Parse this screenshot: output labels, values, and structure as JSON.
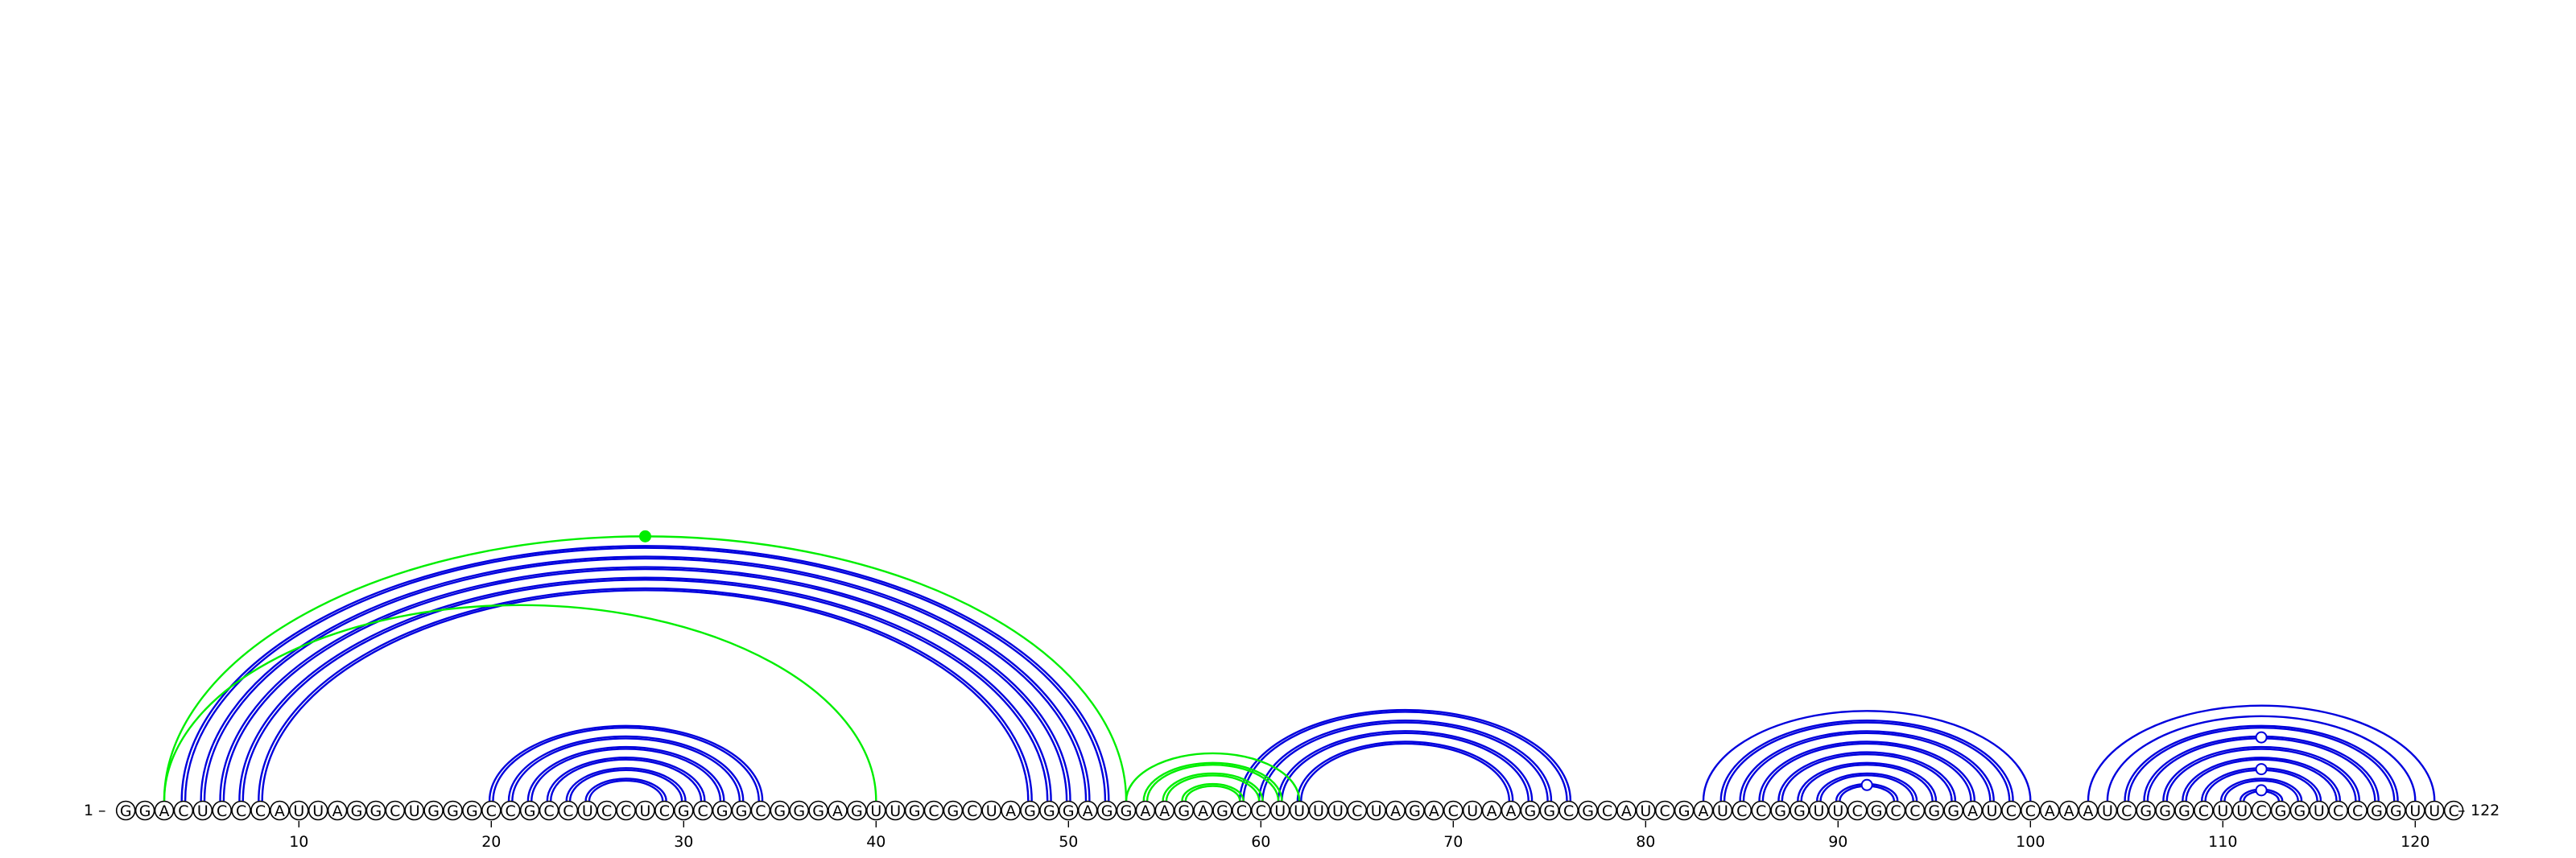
{
  "sequence": "GGACUCCCAUUAGGCUGGGCCGCCUCCUCGCGGCGGGAGUUGCGCUAGGGAGGAAGAGCCUUUUCUAGACUAAGGCGCAUCGAUCCGGUUCGCCGGAUCCAAAUCGGGCUUCGGUCCGGUUC",
  "start_label": "1",
  "end_label": "122",
  "tick_labels": [
    "10",
    "20",
    "30",
    "40",
    "50",
    "60",
    "70",
    "80",
    "90",
    "100",
    "110",
    "120"
  ],
  "colors": {
    "blue": "#0000dd",
    "green": "#00ee00"
  },
  "arcs": {
    "blue_pairs": [
      [
        4,
        52
      ],
      [
        5,
        51
      ],
      [
        6,
        50
      ],
      [
        7,
        49
      ],
      [
        8,
        48
      ],
      [
        20,
        34
      ],
      [
        21,
        33
      ],
      [
        22,
        32
      ],
      [
        23,
        31
      ],
      [
        24,
        30
      ],
      [
        25,
        29
      ],
      [
        59,
        76
      ],
      [
        60,
        75
      ],
      [
        61,
        74
      ],
      [
        62,
        73
      ],
      [
        83,
        100
      ],
      [
        84,
        99
      ],
      [
        85,
        98
      ],
      [
        86,
        97
      ],
      [
        87,
        96
      ],
      [
        88,
        95
      ],
      [
        89,
        94
      ],
      [
        90,
        93
      ],
      [
        103,
        121
      ],
      [
        104,
        120
      ],
      [
        105,
        119
      ],
      [
        106,
        118
      ],
      [
        107,
        117
      ],
      [
        108,
        116
      ],
      [
        109,
        115
      ],
      [
        110,
        114
      ],
      [
        111,
        113
      ]
    ],
    "blue_double": [
      4,
      5,
      6,
      7,
      8,
      20,
      21,
      22,
      23,
      24,
      25,
      59,
      60,
      61,
      62,
      84,
      85,
      86,
      87,
      88,
      89,
      90,
      105,
      106,
      107,
      108,
      109,
      110,
      111
    ],
    "green_pairs": [
      [
        3,
        53
      ],
      [
        3,
        40
      ],
      [
        53,
        62
      ],
      [
        54,
        61
      ],
      [
        55,
        60
      ],
      [
        56,
        59
      ]
    ],
    "green_double": [
      54,
      55,
      56
    ]
  },
  "markers": [
    {
      "pos": 28,
      "arc": [
        3,
        53
      ],
      "color": "#00ee00",
      "filled": true
    },
    {
      "pos": 91,
      "arc": [
        90,
        93
      ],
      "color": "#0000dd",
      "filled": false
    },
    {
      "pos": 112,
      "arc": [
        111,
        113
      ],
      "color": "#0000dd",
      "filled": false
    },
    {
      "pos": 112,
      "arc": [
        109,
        115
      ],
      "color": "#0000dd",
      "filled": false
    },
    {
      "pos": 112,
      "arc": [
        106,
        118
      ],
      "color": "#0000dd",
      "filled": false
    }
  ]
}
